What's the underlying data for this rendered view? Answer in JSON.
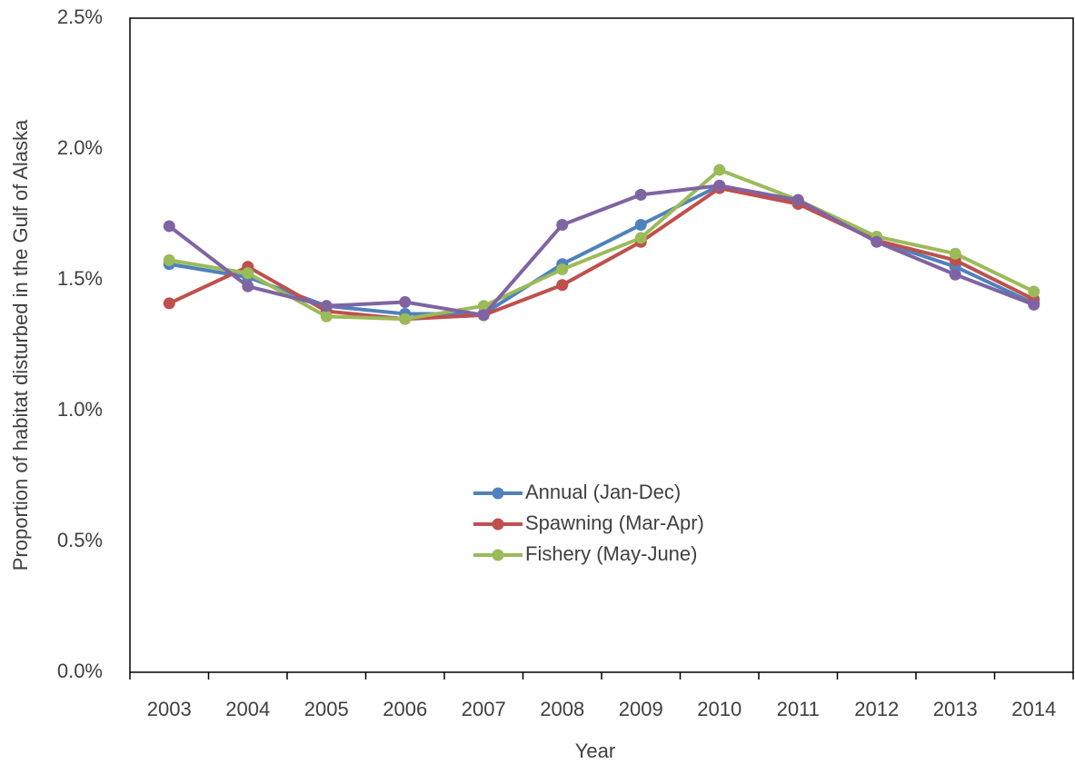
{
  "chart_data": {
    "type": "line",
    "x_label": "Year",
    "y_label": "Proportion of habitat disturbed in the Gulf of Alaska",
    "categories": [
      "2003",
      "2004",
      "2005",
      "2006",
      "2007",
      "2008",
      "2009",
      "2010",
      "2011",
      "2012",
      "2013",
      "2014"
    ],
    "series": [
      {
        "name": "Annual (Jan-Dec)",
        "color": "#4f81bd",
        "values": [
          1.56,
          1.51,
          1.4,
          1.37,
          1.37,
          1.56,
          1.71,
          1.86,
          1.8,
          1.65,
          1.55,
          1.41
        ]
      },
      {
        "name": "Spawning (Mar-Apr)",
        "color": "#c0504d",
        "values": [
          1.41,
          1.55,
          1.38,
          1.35,
          1.365,
          1.48,
          1.645,
          1.85,
          1.79,
          1.65,
          1.575,
          1.425
        ]
      },
      {
        "name": "Fishery (May-June)",
        "color": "#9bbb59",
        "values": [
          1.575,
          1.525,
          1.36,
          1.35,
          1.4,
          1.54,
          1.66,
          1.92,
          1.805,
          1.665,
          1.6,
          1.455
        ]
      },
      {
        "color": "#8064a2",
        "values": [
          1.705,
          1.475,
          1.4,
          1.415,
          1.365,
          1.71,
          1.825,
          1.86,
          1.805,
          1.645,
          1.52,
          1.405
        ]
      }
    ],
    "ylim": [
      0,
      2.5
    ],
    "yticks": [
      {
        "value": 0,
        "label": "0.0%"
      },
      {
        "value": 0.5,
        "label": "0.5%"
      },
      {
        "value": 1,
        "label": "1.0%"
      },
      {
        "value": 1.5,
        "label": "1.5%"
      },
      {
        "value": 2,
        "label": "2.0%"
      },
      {
        "value": 2.5,
        "label": "2.5%"
      }
    ],
    "grid": false
  }
}
